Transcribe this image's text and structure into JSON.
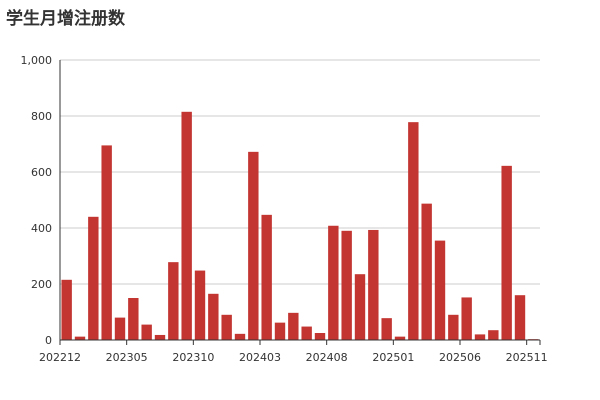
{
  "chart_data": {
    "type": "bar",
    "title": "学生月增注册数",
    "xlabel": "",
    "ylabel": "",
    "ylim": [
      0,
      1000
    ],
    "y_ticks": [
      "0",
      "200",
      "400",
      "600",
      "800",
      "1,000"
    ],
    "x_tick_labels": [
      "202212",
      "202305",
      "202310",
      "202403",
      "202408",
      "202501",
      "202506",
      "202511"
    ],
    "categories": [
      "202212",
      "202301",
      "202302",
      "202303",
      "202304",
      "202305",
      "202306",
      "202307",
      "202308",
      "202309",
      "202310",
      "202311",
      "202312",
      "202401",
      "202402",
      "202403",
      "202404",
      "202405",
      "202406",
      "202407",
      "202408",
      "202409",
      "202410",
      "202411",
      "202412",
      "202501",
      "202502",
      "202503",
      "202504",
      "202505",
      "202506",
      "202507",
      "202508",
      "202509",
      "202510",
      "202511"
    ],
    "values": [
      215,
      12,
      440,
      695,
      80,
      150,
      55,
      18,
      278,
      815,
      248,
      165,
      90,
      22,
      672,
      447,
      62,
      97,
      48,
      25,
      408,
      390,
      235,
      393,
      78,
      12,
      778,
      487,
      355,
      90,
      152,
      20,
      35,
      622,
      160,
      3
    ],
    "grid": true,
    "legend": "none",
    "colors": {
      "bar": "#c23531",
      "grid": "#cccccc",
      "axis": "#333333",
      "text": "#333333"
    }
  }
}
